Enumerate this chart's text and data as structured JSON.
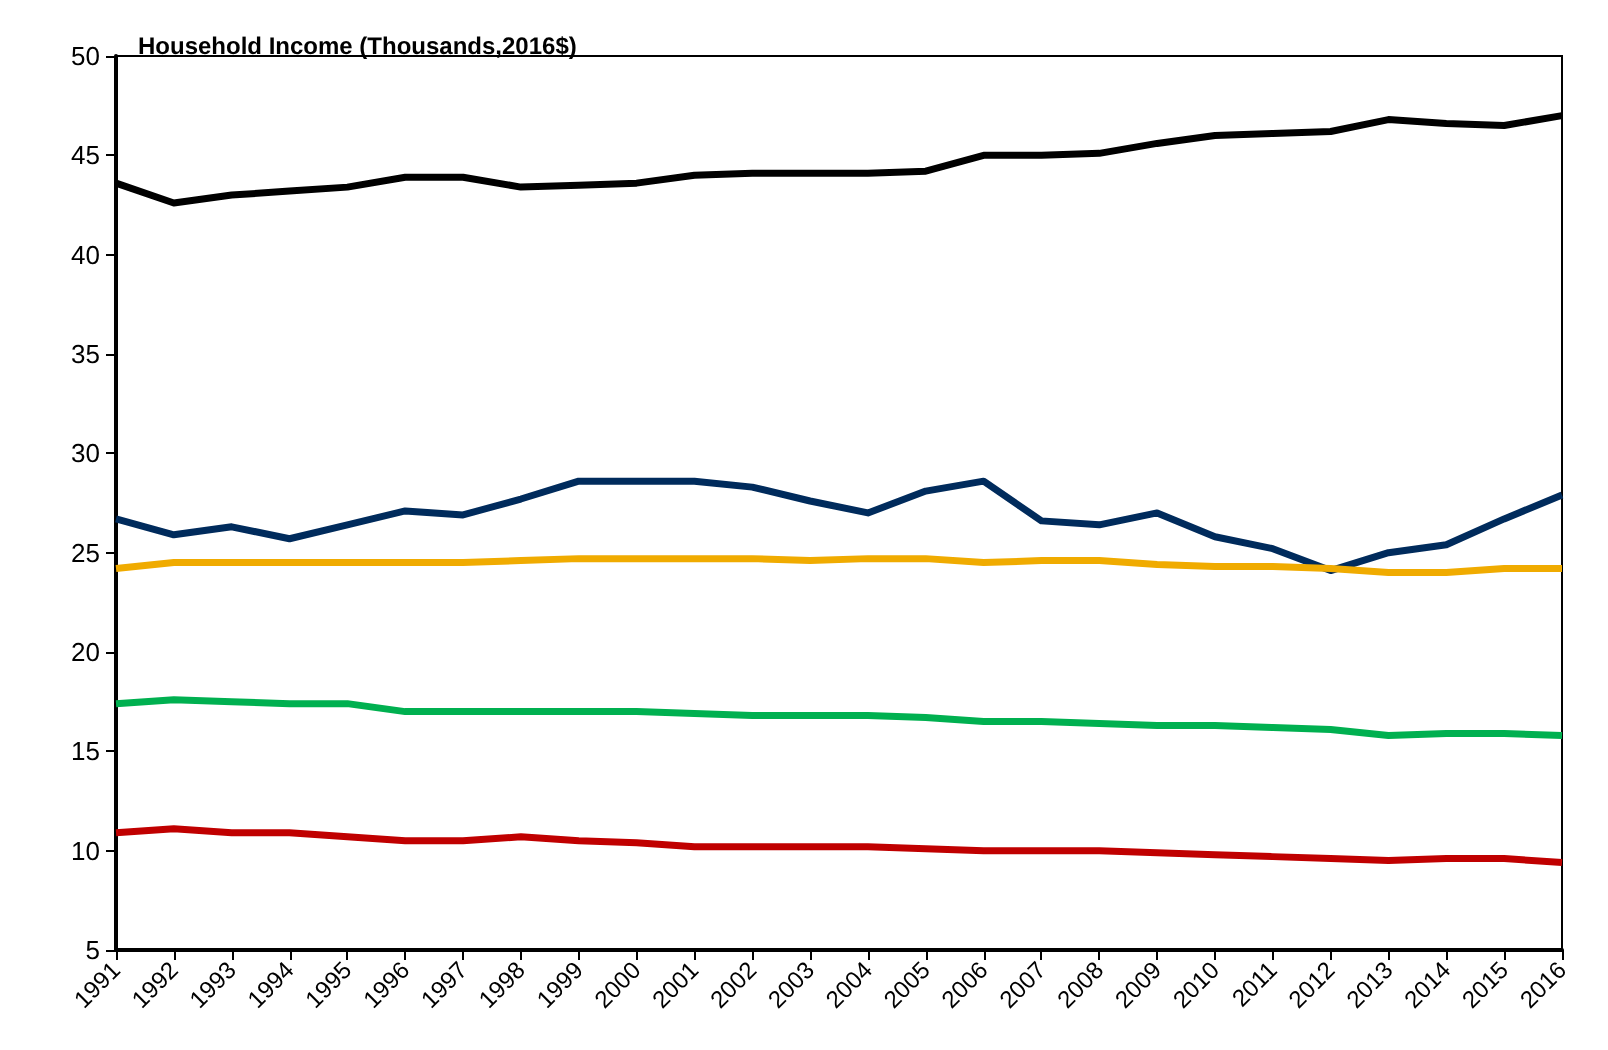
{
  "chart_data": {
    "type": "line",
    "title": "Household Income (Thousands,2016$)",
    "categories": [
      "1991",
      "1992",
      "1993",
      "1994",
      "1995",
      "1996",
      "1997",
      "1998",
      "1999",
      "2000",
      "2001",
      "2002",
      "2003",
      "2004",
      "2005",
      "2006",
      "2007",
      "2008",
      "2009",
      "2010",
      "2011",
      "2012",
      "2013",
      "2014",
      "2015",
      "2016"
    ],
    "series": [
      {
        "color": "#000000",
        "values": [
          43.6,
          42.6,
          43.0,
          43.2,
          43.4,
          43.9,
          43.9,
          43.4,
          43.5,
          43.6,
          44.0,
          44.1,
          44.1,
          44.1,
          44.2,
          45.0,
          45.0,
          45.1,
          45.6,
          46.0,
          46.1,
          46.2,
          46.8,
          46.6,
          46.5,
          47.0
        ]
      },
      {
        "color": "#002b5c",
        "values": [
          26.7,
          25.9,
          26.3,
          25.7,
          26.4,
          27.1,
          26.9,
          27.7,
          28.6,
          28.6,
          28.6,
          28.3,
          27.6,
          27.0,
          28.1,
          28.6,
          26.6,
          26.4,
          27.0,
          25.8,
          25.2,
          24.1,
          25.0,
          25.4,
          26.7,
          27.9
        ]
      },
      {
        "color": "#f0ab00",
        "values": [
          24.2,
          24.5,
          24.5,
          24.5,
          24.5,
          24.5,
          24.5,
          24.6,
          24.7,
          24.7,
          24.7,
          24.7,
          24.6,
          24.7,
          24.7,
          24.5,
          24.6,
          24.6,
          24.4,
          24.3,
          24.3,
          24.2,
          24.0,
          24.0,
          24.2,
          24.2
        ]
      },
      {
        "color": "#00b050",
        "values": [
          17.4,
          17.6,
          17.5,
          17.4,
          17.4,
          17.0,
          17.0,
          17.0,
          17.0,
          17.0,
          16.9,
          16.8,
          16.8,
          16.8,
          16.7,
          16.5,
          16.5,
          16.4,
          16.3,
          16.3,
          16.2,
          16.1,
          15.8,
          15.9,
          15.9,
          15.8
        ]
      },
      {
        "color": "#c00000",
        "values": [
          10.9,
          11.1,
          10.9,
          10.9,
          10.7,
          10.5,
          10.5,
          10.7,
          10.5,
          10.4,
          10.2,
          10.2,
          10.2,
          10.2,
          10.1,
          10.0,
          10.0,
          10.0,
          9.9,
          9.8,
          9.7,
          9.6,
          9.5,
          9.6,
          9.6,
          9.4
        ]
      }
    ],
    "ylim": [
      5,
      50
    ],
    "yticks": [
      5,
      10,
      15,
      20,
      25,
      30,
      35,
      40,
      45,
      50
    ],
    "grid": false,
    "marker": "none",
    "line_style": "solid"
  }
}
